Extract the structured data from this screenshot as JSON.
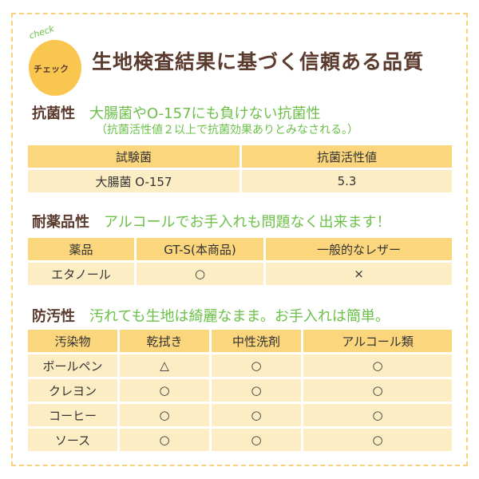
{
  "header": {
    "badge_check": "check",
    "badge_label": "チェック",
    "title": "生地検査結果に基づく信頼ある品質"
  },
  "antibacterial": {
    "label": "抗菌性",
    "tagline": "大腸菌やO-157にも負けない抗菌性",
    "note": "（抗菌活性値２以上で抗菌効果ありとみなされる。）",
    "columns": [
      "試験菌",
      "抗菌活性値"
    ],
    "rows": [
      [
        "大腸菌 O-157",
        "5.3"
      ]
    ]
  },
  "chemical": {
    "label": "耐薬品性",
    "tagline": "アルコールでお手入れも問題なく出来ます！",
    "columns": [
      "薬品",
      "GT-S(本商品)",
      "一般的なレザー"
    ],
    "rows": [
      [
        "エタノール",
        "○",
        "×"
      ]
    ]
  },
  "stain": {
    "label": "防汚性",
    "tagline": "汚れても生地は綺麗なまま。お手入れは簡単。",
    "columns": [
      "汚染物",
      "乾拭き",
      "中性洗剤",
      "アルコール類"
    ],
    "rows": [
      [
        "ボールペン",
        "△",
        "○",
        "○"
      ],
      [
        "クレヨン",
        "○",
        "○",
        "○"
      ],
      [
        "コーヒー",
        "○",
        "○",
        "○"
      ],
      [
        "ソース",
        "○",
        "○",
        "○"
      ]
    ]
  },
  "colors": {
    "header_fill": "#fcd67c",
    "row_fill": "#fdedc4",
    "accent_green": "#6cc04a",
    "title_brown": "#5b3b2e",
    "badge": "#f9c74f"
  }
}
